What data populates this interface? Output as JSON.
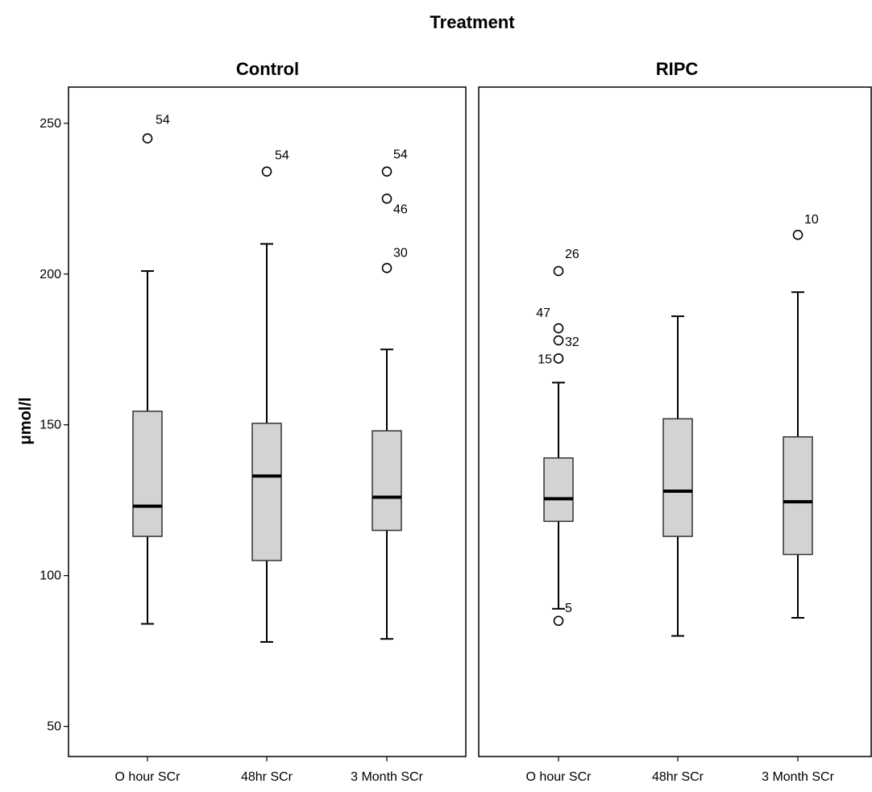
{
  "chart_data": {
    "type": "boxplot",
    "title": "Treatment",
    "ylabel": "μmol/l",
    "xlabel": "",
    "ylim": [
      40,
      262
    ],
    "yticks": [
      50,
      100,
      150,
      200,
      250
    ],
    "grid": false,
    "legend": "none",
    "box_color": "#d3d3d3",
    "median_color": "#000000",
    "categories": [
      "O hour SCr",
      "48hr SCr",
      "3 Month SCr"
    ],
    "panels": [
      {
        "name": "Control",
        "boxes": [
          {
            "category": "O hour SCr",
            "whisker_low": 84,
            "q1": 113,
            "median": 123,
            "q3": 154.5,
            "whisker_high": 201,
            "outliers": [
              {
                "value": 245,
                "label": "54"
              }
            ]
          },
          {
            "category": "48hr SCr",
            "whisker_low": 78,
            "q1": 105,
            "median": 133,
            "q3": 150.5,
            "whisker_high": 210,
            "outliers": [
              {
                "value": 234,
                "label": "54"
              }
            ]
          },
          {
            "category": "3 Month SCr",
            "whisker_low": 79,
            "q1": 115,
            "median": 126,
            "q3": 148,
            "whisker_high": 175,
            "outliers": [
              {
                "value": 234,
                "label": "54"
              },
              {
                "value": 225,
                "label": "46"
              },
              {
                "value": 202,
                "label": "30"
              }
            ]
          }
        ]
      },
      {
        "name": "RIPC",
        "boxes": [
          {
            "category": "O hour SCr",
            "whisker_low": 89,
            "q1": 118,
            "median": 125.5,
            "q3": 139,
            "whisker_high": 164,
            "outliers": [
              {
                "value": 201,
                "label": "26"
              },
              {
                "value": 182,
                "label": "47"
              },
              {
                "value": 178,
                "label": "32"
              },
              {
                "value": 172,
                "label": "15"
              },
              {
                "value": 85,
                "label": "5"
              }
            ]
          },
          {
            "category": "48hr SCr",
            "whisker_low": 80,
            "q1": 113,
            "median": 128,
            "q3": 152,
            "whisker_high": 186,
            "outliers": []
          },
          {
            "category": "3 Month SCr",
            "whisker_low": 86,
            "q1": 107,
            "median": 124.5,
            "q3": 146,
            "whisker_high": 194,
            "outliers": [
              {
                "value": 213,
                "label": "10"
              }
            ]
          }
        ]
      }
    ]
  }
}
